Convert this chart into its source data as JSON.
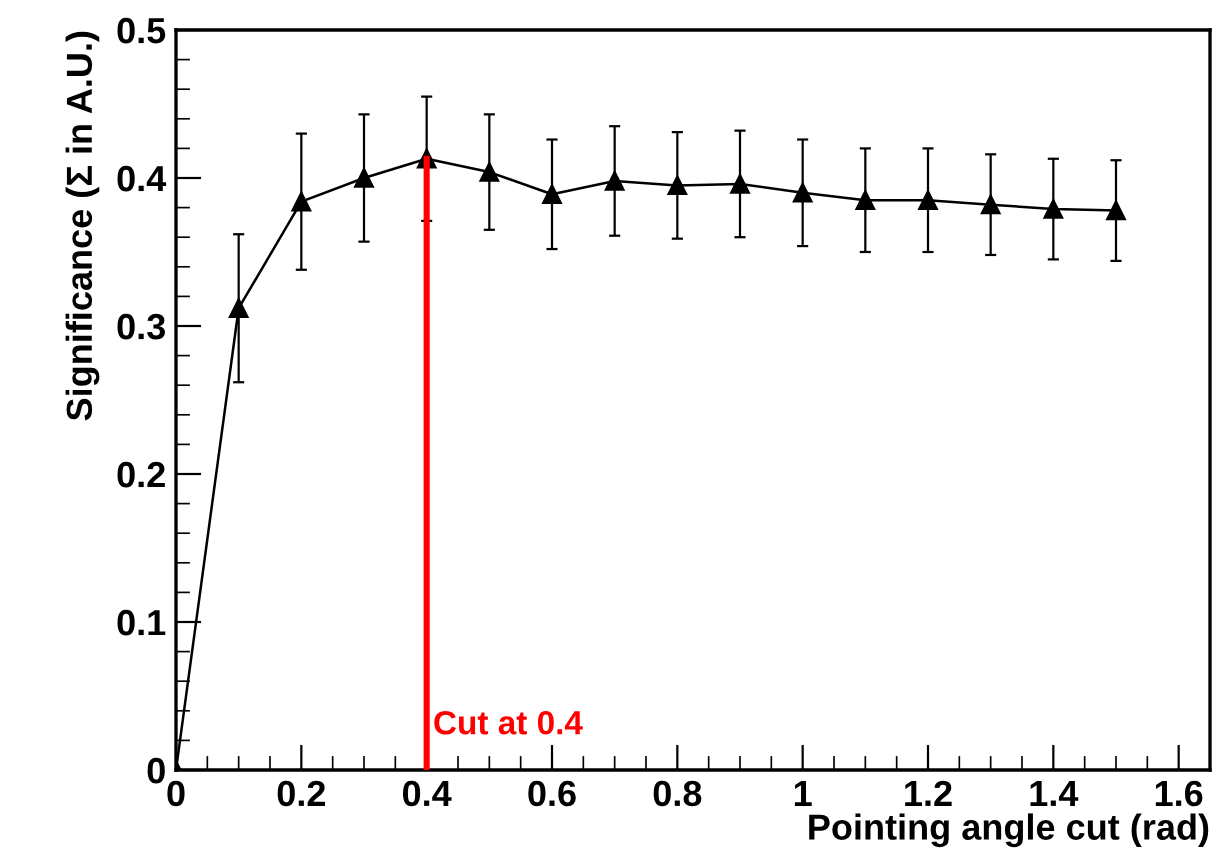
{
  "chart_data": {
    "type": "line",
    "xlabel": "Pointing angle cut (rad)",
    "ylabel": "Significance (Σ in A.U.)",
    "x": [
      0,
      0.1,
      0.2,
      0.3,
      0.4,
      0.5,
      0.6,
      0.7,
      0.8,
      0.9,
      1.0,
      1.1,
      1.2,
      1.3,
      1.4,
      1.5
    ],
    "series": [
      {
        "color": "#000000",
        "marker": "triangle",
        "values": [
          0,
          0.312,
          0.384,
          0.4,
          0.413,
          0.404,
          0.389,
          0.398,
          0.395,
          0.396,
          0.39,
          0.385,
          0.385,
          0.382,
          0.379,
          0.378
        ],
        "errors": [
          null,
          0.05,
          0.046,
          0.043,
          0.042,
          0.039,
          0.037,
          0.037,
          0.036,
          0.036,
          0.036,
          0.035,
          0.035,
          0.034,
          0.034,
          0.034
        ]
      }
    ],
    "xlim": [
      0,
      1.65
    ],
    "xticks": [
      0,
      0.2,
      0.4,
      0.6,
      0.8,
      1,
      1.2,
      1.4,
      1.6
    ],
    "ylim": [
      0,
      0.5
    ],
    "yticks": [
      0,
      0.1,
      0.2,
      0.3,
      0.4,
      0.5
    ],
    "ref_lines": [
      {
        "axis": "x",
        "value": 0.4,
        "label": "Cut at 0.4",
        "color": "#ff0000"
      }
    ],
    "grid": false
  }
}
